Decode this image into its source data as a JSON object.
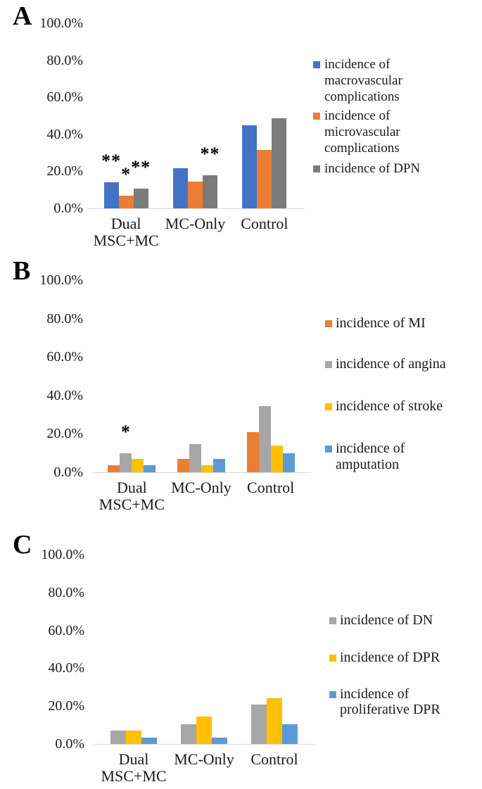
{
  "figure_background": "#ffffff",
  "axis_line_color": "#d9d9d9",
  "chart_data": [
    {
      "panel": "A",
      "type": "bar",
      "categories": [
        "Dual MSC+MC",
        "MC-Only",
        "Control"
      ],
      "category_label_lines": [
        [
          "Dual",
          "MSC+MC"
        ],
        [
          "MC-Only"
        ],
        [
          "Control"
        ]
      ],
      "series": [
        {
          "name": "incidence of macrovascular complications",
          "color": "#4472C4",
          "values": [
            14.0,
            21.5,
            45.0
          ]
        },
        {
          "name": "incidence of microvascular complications",
          "color": "#ED7D31",
          "values": [
            7.0,
            14.5,
            31.5
          ]
        },
        {
          "name": "incidence of DPN",
          "color": "#7B7B7B",
          "values": [
            10.5,
            18.0,
            48.5
          ]
        }
      ],
      "ylim": [
        0,
        100
      ],
      "y_tick_labels": [
        "100.0%",
        "80.0%",
        "60.0%",
        "40.0%",
        "20.0%",
        "0.0%"
      ],
      "grid": false,
      "legend_position": "right",
      "legend_label_lines": [
        [
          "incidence of",
          "macrovascular",
          "complications"
        ],
        [
          "incidence of",
          "microvascular",
          "complications"
        ],
        [
          "incidence of DPN"
        ]
      ],
      "annotations": [
        {
          "category_index": 0,
          "series_index": 0,
          "text": "**"
        },
        {
          "category_index": 0,
          "series_index": 1,
          "text": "*"
        },
        {
          "category_index": 0,
          "series_index": 2,
          "text": "**"
        },
        {
          "category_index": 1,
          "series_index": 2,
          "text": "**"
        }
      ]
    },
    {
      "panel": "B",
      "type": "bar",
      "categories": [
        "Dual MSC+MC",
        "MC-Only",
        "Control"
      ],
      "category_label_lines": [
        [
          "Dual",
          "MSC+MC"
        ],
        [
          "MC-Only"
        ],
        [
          "Control"
        ]
      ],
      "series": [
        {
          "name": "incidence of MI",
          "color": "#ED7D31",
          "values": [
            3.5,
            7.0,
            21.0
          ]
        },
        {
          "name": "incidence of angina",
          "color": "#A6A6A6",
          "values": [
            10.0,
            14.5,
            34.5
          ]
        },
        {
          "name": "incidence of stroke",
          "color": "#FFC000",
          "values": [
            7.0,
            3.5,
            14.0
          ]
        },
        {
          "name": "incidence of amputation",
          "color": "#5B9BD5",
          "values": [
            3.5,
            7.0,
            10.0
          ]
        }
      ],
      "ylim": [
        0,
        100
      ],
      "y_tick_labels": [
        "100.0%",
        "80.0%",
        "60.0%",
        "40.0%",
        "20.0%",
        "0.0%"
      ],
      "grid": false,
      "legend_position": "right",
      "legend_label_lines": [
        [
          "incidence of MI"
        ],
        [
          "incidence of angina"
        ],
        [
          "incidence of stroke"
        ],
        [
          "incidence of",
          "amputation"
        ]
      ],
      "annotations": [
        {
          "category_index": 0,
          "series_index": 1,
          "text": "*"
        }
      ]
    },
    {
      "panel": "C",
      "type": "bar",
      "categories": [
        "Dual MSC+MC",
        "MC-Only",
        "Control"
      ],
      "category_label_lines": [
        [
          "Dual",
          "MSC+MC"
        ],
        [
          "MC-Only"
        ],
        [
          "Control"
        ]
      ],
      "series": [
        {
          "name": "incidence of DN",
          "color": "#A6A6A6",
          "values": [
            7.0,
            10.5,
            21.0
          ]
        },
        {
          "name": "incidence of DPR",
          "color": "#FFC000",
          "values": [
            7.0,
            14.5,
            24.0
          ]
        },
        {
          "name": "incidence of proliferative DPR",
          "color": "#5B9BD5",
          "values": [
            3.5,
            3.5,
            10.5
          ]
        }
      ],
      "ylim": [
        0,
        100
      ],
      "y_tick_labels": [
        "100.0%",
        "80.0%",
        "60.0%",
        "40.0%",
        "20.0%",
        "0.0%"
      ],
      "grid": false,
      "legend_position": "right",
      "legend_label_lines": [
        [
          "incidence of DN"
        ],
        [
          "incidence of DPR"
        ],
        [
          "incidence of",
          "proliferative DPR"
        ]
      ],
      "annotations": []
    }
  ]
}
